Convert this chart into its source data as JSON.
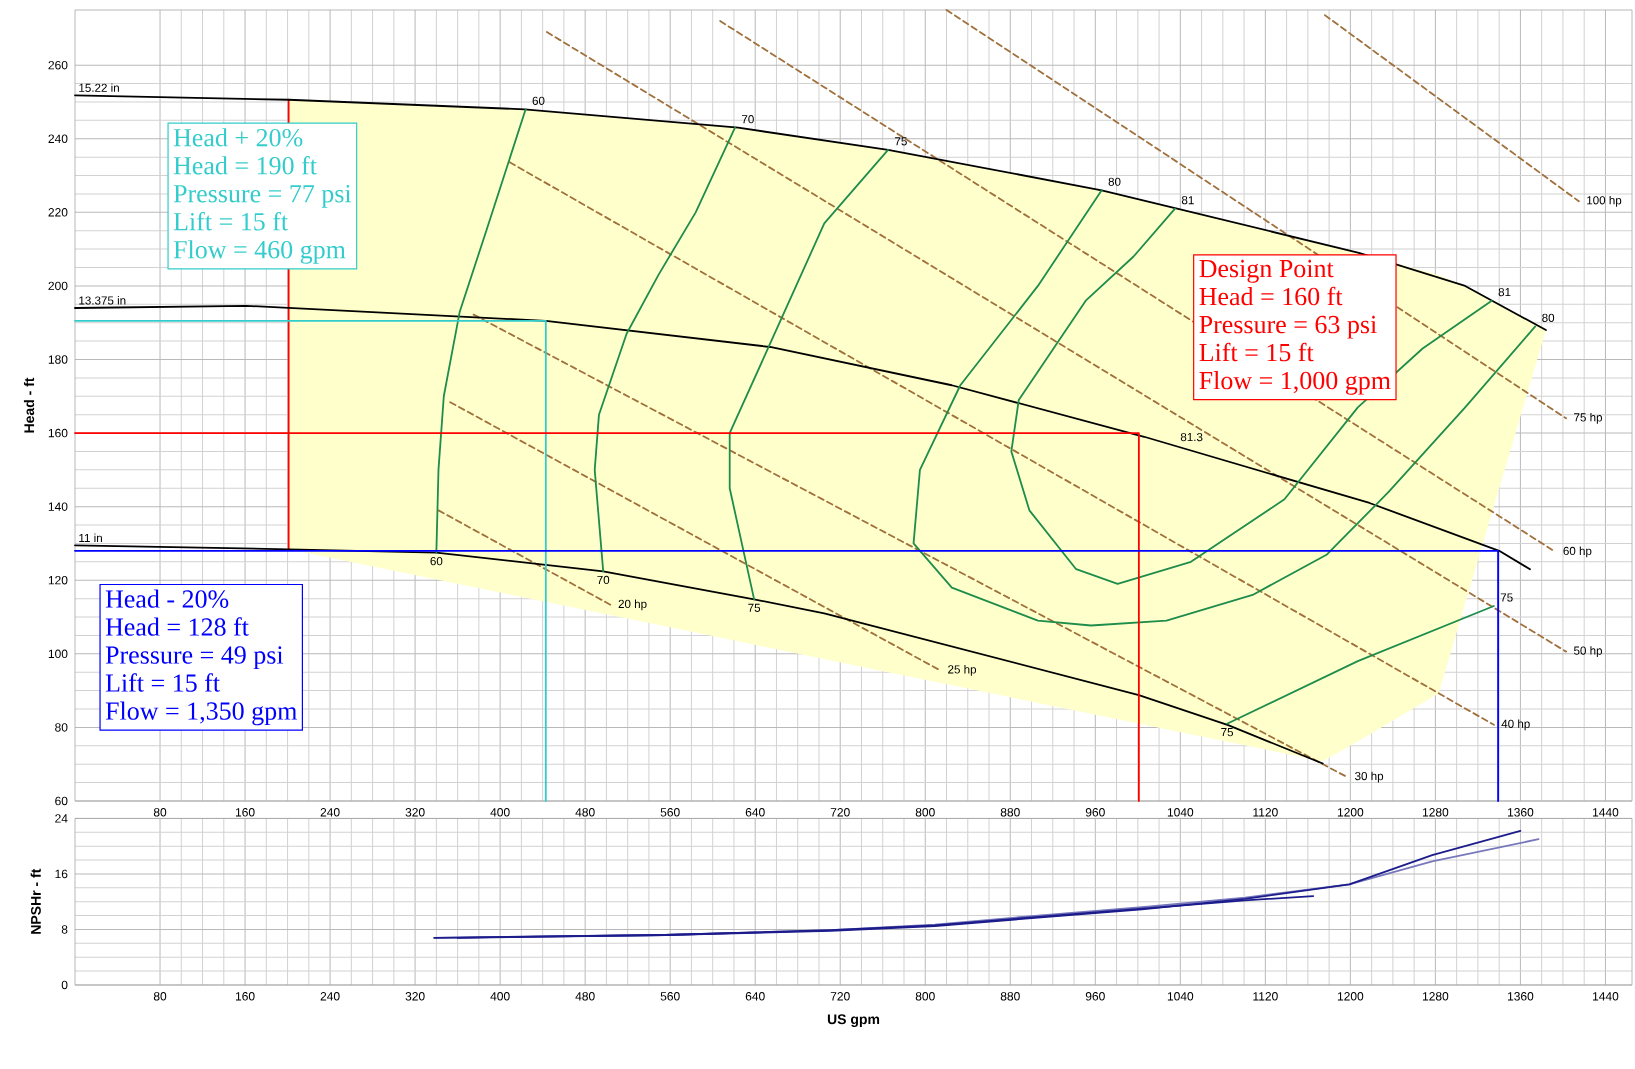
{
  "chart_data": [
    {
      "type": "line",
      "ylabel": "Head - ft",
      "xlim": [
        0,
        1465
      ],
      "ylim": [
        60,
        275
      ],
      "xticks": [
        80,
        160,
        240,
        320,
        400,
        480,
        560,
        640,
        720,
        800,
        880,
        960,
        1040,
        1120,
        1200,
        1280,
        1360,
        1440
      ],
      "yticks": [
        60,
        80,
        100,
        120,
        140,
        160,
        180,
        200,
        220,
        240,
        260
      ],
      "grid": true,
      "series": [
        {
          "type": "area",
          "color": "#ffffcc",
          "x": [
            201,
            423,
            624,
            765,
            966,
            1037,
            1174,
            1208,
            1283,
            1308,
            1384
          ],
          "values": [
            null,
            null,
            null,
            null,
            null,
            null,
            null,
            null,
            null,
            null,
            null
          ],
          "upper": [
            250.6,
            248,
            243,
            237,
            226,
            221,
            211.5,
            209,
            203,
            200,
            188
          ],
          "lower": [
            128.4,
            115.3,
            103.4,
            95,
            83.1,
            78.9,
            70.8,
            76.4,
            89.2,
            113.7,
            188
          ]
        },
        {
          "color": "#ff0000",
          "x": [
            201,
            201
          ],
          "values": [
            250.6,
            128.4
          ]
        },
        {
          "name": "20 hp",
          "color": "#a0703c",
          "line_style": "dashed",
          "x": [
            342,
            504
          ],
          "values": [
            139,
            113.3
          ]
        },
        {
          "name": "25 hp",
          "color": "#a0703c",
          "line_style": "dashed",
          "x": [
            353,
            814
          ],
          "values": [
            168.4,
            95.5
          ]
        },
        {
          "name": "30 hp",
          "color": "#a0703c",
          "line_style": "dashed",
          "x": [
            375,
            1197
          ],
          "values": [
            192.2,
            66.5
          ]
        },
        {
          "name": "40 hp",
          "color": "#a0703c",
          "line_style": "dashed",
          "x": [
            409,
            1335
          ],
          "values": [
            233.6,
            80.7
          ]
        },
        {
          "name": "50 hp",
          "color": "#a0703c",
          "line_style": "dashed",
          "x": [
            444,
            1403
          ],
          "values": [
            269,
            100.6
          ]
        },
        {
          "name": "60 hp",
          "color": "#a0703c",
          "line_style": "dashed",
          "x": [
            607,
            1393
          ],
          "values": [
            272,
            127.7
          ]
        },
        {
          "name": "75 hp",
          "color": "#a0703c",
          "line_style": "dashed",
          "x": [
            820,
            1403
          ],
          "values": [
            275,
            164
          ]
        },
        {
          "name": "100 hp",
          "color": "#a0703c",
          "line_style": "dashed",
          "x": [
            1176,
            1415
          ],
          "values": [
            273.6,
            223
          ]
        },
        {
          "name": "15.22 in",
          "color": "#000000",
          "x": [
            0,
            201,
            423,
            624,
            765,
            966,
            1037,
            1208,
            1308,
            1384
          ],
          "values": [
            251.8,
            250.6,
            248,
            243,
            237,
            226,
            221,
            209,
            200,
            188
          ]
        },
        {
          "name": "13.375 in",
          "color": "#000000",
          "x": [
            0,
            161,
            443,
            654,
            825,
            1006,
            1218,
            1340,
            1369
          ],
          "values": [
            194,
            194.6,
            190.5,
            183.4,
            173,
            159,
            141,
            128,
            123
          ]
        },
        {
          "name": "11 in",
          "color": "#000000",
          "x": [
            0,
            201,
            340,
            497,
            639,
            705,
            1001,
            1085,
            1174
          ],
          "values": [
            129.5,
            128.4,
            127.5,
            122.4,
            114.8,
            111,
            88.8,
            80.6,
            70.2
          ]
        },
        {
          "color": "#1e8c4b",
          "x": [
            424,
            387,
            362,
            347,
            342,
            340
          ],
          "values": [
            248,
            215,
            193,
            170,
            150,
            127.5
          ]
        },
        {
          "color": "#1e8c4b",
          "x": [
            621,
            584,
            549,
            519,
            493,
            489,
            497
          ],
          "values": [
            243,
            220,
            203,
            187,
            165,
            150,
            122.4
          ]
        },
        {
          "color": "#1e8c4b",
          "x": [
            765,
            705,
            652,
            616,
            616,
            639
          ],
          "values": [
            237,
            217,
            183,
            160,
            145,
            114.8
          ]
        },
        {
          "color": "#1e8c4b",
          "x": [
            966,
            906,
            833,
            795,
            789,
            825,
            906,
            956,
            1027,
            1108,
            1178,
            1236,
            1308,
            1374
          ],
          "values": [
            226,
            200,
            173,
            150,
            130,
            118,
            109,
            107.7,
            109,
            116,
            127,
            144,
            167,
            189
          ]
        },
        {
          "color": "#1e8c4b",
          "x": [
            1035,
            996,
            951,
            888,
            881,
            898,
            942,
            981,
            1050,
            1138,
            1207,
            1268,
            1333
          ],
          "values": [
            221,
            208,
            196,
            169,
            155,
            139,
            123,
            119,
            125,
            142,
            167,
            183,
            196
          ]
        },
        {
          "color": "#1e8c4b",
          "x": [
            1084,
            1207,
            1335
          ],
          "values": [
            81,
            98,
            113
          ]
        },
        {
          "color": "#33cccc",
          "x": [
            0,
            443,
            443
          ],
          "values": [
            190.5,
            190.5,
            60
          ]
        },
        {
          "color": "#ff0000",
          "x": [
            0,
            1001,
            1001
          ],
          "values": [
            160,
            160,
            60
          ]
        },
        {
          "color": "#0000ff",
          "x": [
            0,
            1339,
            1339
          ],
          "values": [
            128,
            128,
            60
          ]
        }
      ],
      "annotations": [
        {
          "text": "60",
          "x": 424,
          "y": 248
        },
        {
          "text": "60",
          "x": 340,
          "y": 127.5
        },
        {
          "text": "70",
          "x": 621,
          "y": 243
        },
        {
          "text": "70",
          "x": 497,
          "y": 122.4
        },
        {
          "text": "75",
          "x": 765,
          "y": 237
        },
        {
          "text": "75",
          "x": 639,
          "y": 114.8
        },
        {
          "text": "80",
          "x": 966,
          "y": 226
        },
        {
          "text": "80",
          "x": 1374,
          "y": 189
        },
        {
          "text": "81",
          "x": 1035,
          "y": 221
        },
        {
          "text": "81",
          "x": 1333,
          "y": 196
        },
        {
          "text": "81.3",
          "x": 1034,
          "y": 156.6
        },
        {
          "text": "75",
          "x": 1335,
          "y": 113
        },
        {
          "text": "75",
          "x": 1084,
          "y": 81
        },
        "Head + 20%",
        "Head = 190 ft",
        "Pressure = 77 psi",
        "Lift = 15 ft",
        "Flow = 460 gpm",
        "Design Point",
        "Head = 160 ft",
        "Pressure = 63 psi",
        "Lift = 15 ft",
        "Flow = 1,000 gpm",
        "Head - 20%",
        "Head = 128 ft",
        "Pressure = 49 psi",
        "Lift = 15 ft",
        "Flow = 1,350 gpm"
      ]
    },
    {
      "type": "line",
      "xlabel": "US gpm",
      "ylabel": "NPSHr - ft",
      "xlim": [
        0,
        1465
      ],
      "ylim": [
        0,
        24
      ],
      "xticks": [
        80,
        160,
        240,
        320,
        400,
        480,
        560,
        640,
        720,
        800,
        880,
        960,
        1040,
        1120,
        1200,
        1280,
        1360,
        1440
      ],
      "yticks": [
        0,
        8,
        16,
        24
      ],
      "grid": true,
      "series": [
        {
          "color": "#7777bb",
          "x": [
            338,
            555,
            711,
            809,
            906,
            1004,
            1101,
            1199,
            1277,
            1377
          ],
          "values": [
            6.8,
            7.2,
            7.9,
            8.7,
            10.0,
            11.2,
            12.6,
            14.5,
            17.8,
            21.0
          ]
        },
        {
          "color": "#1c1c8c",
          "x": [
            338,
            555,
            711,
            809,
            906,
            1004,
            1101,
            1165
          ],
          "values": [
            6.8,
            7.2,
            7.9,
            8.6,
            9.8,
            11.0,
            12.2,
            12.8
          ]
        },
        {
          "color": "#1c1c8c",
          "x": [
            360,
            555,
            711,
            809,
            906,
            1004,
            1101,
            1199,
            1277,
            1360
          ],
          "values": [
            6.8,
            7.2,
            7.8,
            8.5,
            9.7,
            10.9,
            12.4,
            14.5,
            18.7,
            22.2
          ]
        }
      ]
    }
  ]
}
